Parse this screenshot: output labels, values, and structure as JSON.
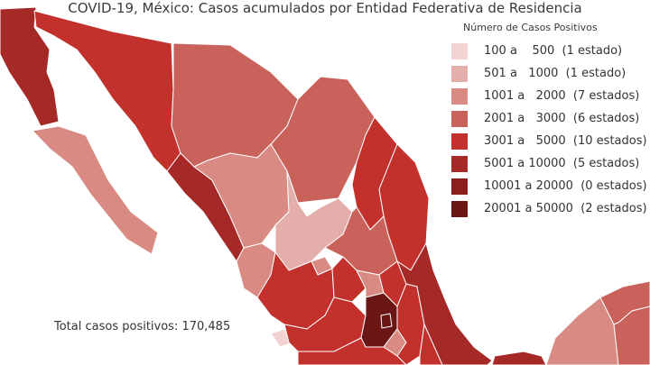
{
  "title": "COVID-19, México: Casos acumulados por Entidad Federativa de Residencia",
  "legend": {
    "title": "Número de Casos Positivos",
    "items": [
      {
        "label": "100 a    500  (1 estado)",
        "color": "#f2d3d1"
      },
      {
        "label": "501 a   1000  (1 estado)",
        "color": "#e4aeaa"
      },
      {
        "label": "1001 a   2000  (7 estados)",
        "color": "#d98b83"
      },
      {
        "label": "2001 a   3000  (6 estados)",
        "color": "#c9625a"
      },
      {
        "label": "3001 a   5000  (10 estados)",
        "color": "#c3312d"
      },
      {
        "label": "5001 a 10000  (5 estados)",
        "color": "#a52a27"
      },
      {
        "label": "10001 a 20000  (0 estados)",
        "color": "#8a1f1d"
      },
      {
        "label": "20001 a 50000  (2 estados)",
        "color": "#6a1715"
      }
    ]
  },
  "total": "Total casos positivos: 170,485"
}
